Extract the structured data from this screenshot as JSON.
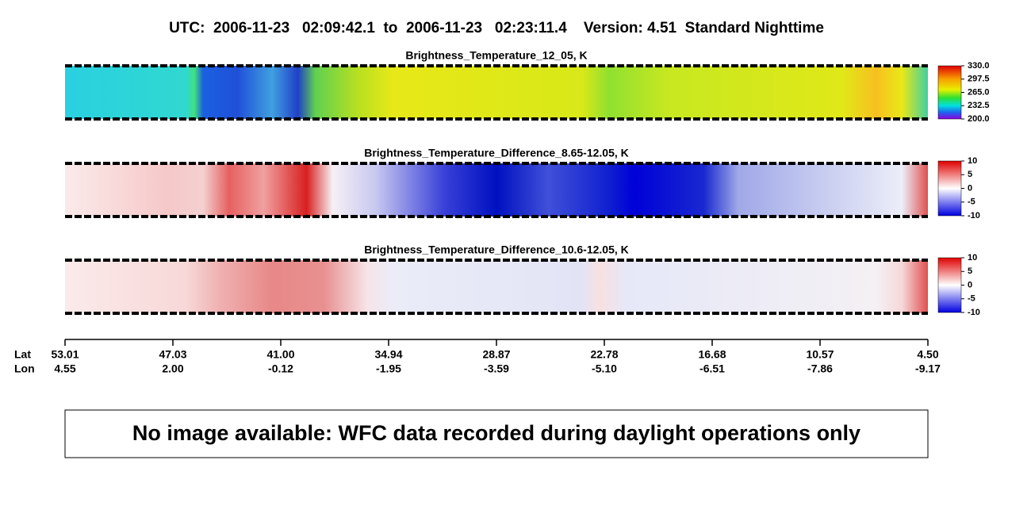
{
  "header": {
    "title": "UTC:  2006-11-23   02:09:42.1  to  2006-11-23   02:23:11.4    Version: 4.51  Standard Nighttime"
  },
  "chart_data": [
    {
      "type": "heatmap",
      "title": "Brightness_Temperature_12_05, K",
      "colormap": "rainbow",
      "clim": [
        200,
        330
      ],
      "cticks": [
        {
          "value": 330,
          "label": "330.0"
        },
        {
          "value": 297.5,
          "label": "297.5"
        },
        {
          "value": 265,
          "label": "265.0"
        },
        {
          "value": 232.5,
          "label": "232.5"
        },
        {
          "value": 200,
          "label": "200.0"
        }
      ]
    },
    {
      "type": "heatmap",
      "title": "Brightness_Temperature_Difference_8.65-12.05, K",
      "colormap": "bwr",
      "clim": [
        -10,
        10
      ],
      "cticks": [
        10,
        5,
        0,
        -5,
        -10
      ]
    },
    {
      "type": "heatmap",
      "title": "Brightness_Temperature_Difference_10.6-12.05, K",
      "colormap": "bwr",
      "clim": [
        -10,
        10
      ],
      "cticks": [
        10,
        5,
        0,
        -5,
        -10
      ]
    }
  ],
  "x_axis": {
    "row_labels": [
      "Lat",
      "Lon"
    ],
    "lat": [
      {
        "value": 53.01,
        "label": "53.01"
      },
      {
        "value": 47.03,
        "label": "47.03"
      },
      {
        "value": 41,
        "label": "41.00"
      },
      {
        "value": 34.94,
        "label": "34.94"
      },
      {
        "value": 28.87,
        "label": "28.87"
      },
      {
        "value": 22.78,
        "label": "22.78"
      },
      {
        "value": 16.68,
        "label": "16.68"
      },
      {
        "value": 10.57,
        "label": "10.57"
      },
      {
        "value": 4.5,
        "label": "4.50"
      }
    ],
    "lon": [
      {
        "value": 4.55,
        "label": "4.55"
      },
      {
        "value": 2,
        "label": "2.00"
      },
      {
        "value": -0.12,
        "label": "-0.12"
      },
      {
        "value": -1.95,
        "label": "-1.95"
      },
      {
        "value": -3.59,
        "label": "-3.59"
      },
      {
        "value": -5.1,
        "label": "-5.10"
      },
      {
        "value": -6.51,
        "label": "-6.51"
      },
      {
        "value": -7.86,
        "label": "-7.86"
      },
      {
        "value": -9.17,
        "label": "-9.17"
      }
    ]
  },
  "message": "No image available: WFC data recorded during daylight operations only"
}
